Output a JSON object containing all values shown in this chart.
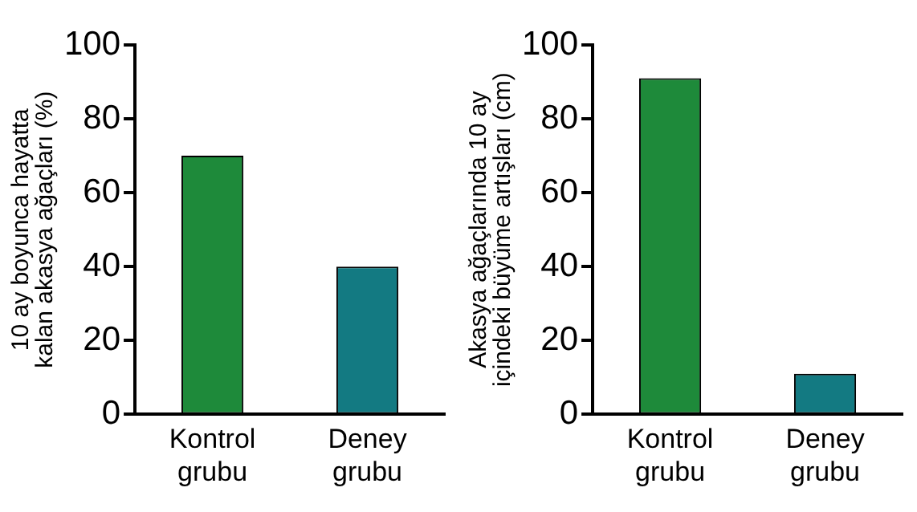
{
  "chart_data": [
    {
      "type": "bar",
      "ylabel": "10 ay boyunca hayatta kalan akasya ağaçları (%)",
      "categories": [
        "Kontrol grubu",
        "Deney grubu"
      ],
      "values": [
        70,
        40
      ],
      "colors": [
        "#1e8a3a",
        "#137a82"
      ],
      "ylim": [
        0,
        100
      ],
      "yticks": [
        0,
        20,
        40,
        60,
        80,
        100
      ],
      "grid": false,
      "legend": false
    },
    {
      "type": "bar",
      "ylabel": "Akasya ağaçlarında 10 ay içindeki büyüme artışları (cm)",
      "categories": [
        "Kontrol grubu",
        "Deney grubu"
      ],
      "values": [
        91,
        11
      ],
      "colors": [
        "#1e8a3a",
        "#137a82"
      ],
      "ylim": [
        0,
        100
      ],
      "yticks": [
        0,
        20,
        40,
        60,
        80,
        100
      ],
      "grid": false,
      "legend": false
    }
  ]
}
